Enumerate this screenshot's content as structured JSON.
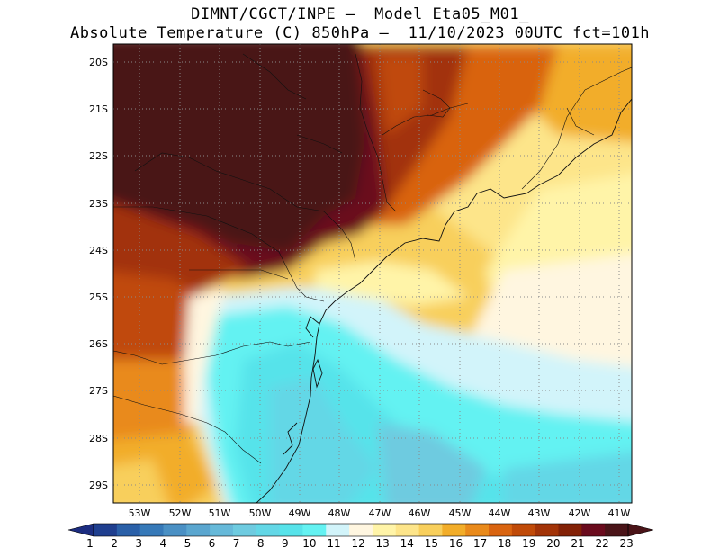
{
  "header": {
    "line1": "DIMNT/CGCT/INPE —  Model Eta05_M01_",
    "line2": "Absolute Temperature (C) 850hPa —  11/10/2023 00UTC fct=101h"
  },
  "axes": {
    "lat_labels": [
      "20S",
      "21S",
      "22S",
      "23S",
      "24S",
      "25S",
      "26S",
      "27S",
      "28S",
      "29S"
    ],
    "lon_labels": [
      "53W",
      "52W",
      "51W",
      "50W",
      "49W",
      "48W",
      "47W",
      "46W",
      "45W",
      "44W",
      "43W",
      "42W",
      "41W"
    ]
  },
  "colorbar": {
    "labels": [
      "1",
      "2",
      "3",
      "4",
      "5",
      "6",
      "7",
      "8",
      "9",
      "10",
      "11",
      "12",
      "13",
      "14",
      "15",
      "16",
      "17",
      "18",
      "19",
      "20",
      "21",
      "22",
      "23"
    ],
    "colors": [
      "#1f3f8f",
      "#2a60a8",
      "#3679b8",
      "#4a90c4",
      "#5aa6cf",
      "#66b9d9",
      "#6ecbe0",
      "#63d7e6",
      "#57e3ea",
      "#64f2f2",
      "#d2f4fa",
      "#fff6e0",
      "#fff4a8",
      "#fde58a",
      "#f8cf5c",
      "#f2ad29",
      "#e98a1b",
      "#d96410",
      "#c04a08",
      "#a23307",
      "#832106",
      "#6a0b1d",
      "#4a1418"
    ],
    "left_arrow_color": "#1c2d80",
    "right_arrow_color": "#4a1418"
  },
  "chart_data": {
    "type": "heatmap",
    "title": "Absolute Temperature (C) 850hPa",
    "variable": "Absolute Temperature (C) 850hPa",
    "xlim": [
      "53.5W",
      "40.8W"
    ],
    "ylim": [
      "29.4S",
      "19.9S"
    ],
    "grid": true,
    "scale_range": [
      1,
      23
    ],
    "regions": [
      {
        "area": "north-west interior (20S-23S, 53W-48W)",
        "temperature_c": 23
      },
      {
        "area": "north coast (20S-23S, 47W-45W)",
        "temperature_c": 20
      },
      {
        "area": "north-east coast (20S-22S, 44W-41W)",
        "temperature_c": 16
      },
      {
        "area": "offshore 24S-26S, 45W-41W",
        "temperature_c": 13
      },
      {
        "area": "southern Brazil interior (26S-28S, 53W-51W)",
        "temperature_c": 19
      },
      {
        "area": "offshore 27S-29S, 49W-45W",
        "temperature_c": 9
      },
      {
        "area": "south-west corner (28.5S-29.4S, 53W-52W)",
        "temperature_c": 16
      }
    ]
  }
}
